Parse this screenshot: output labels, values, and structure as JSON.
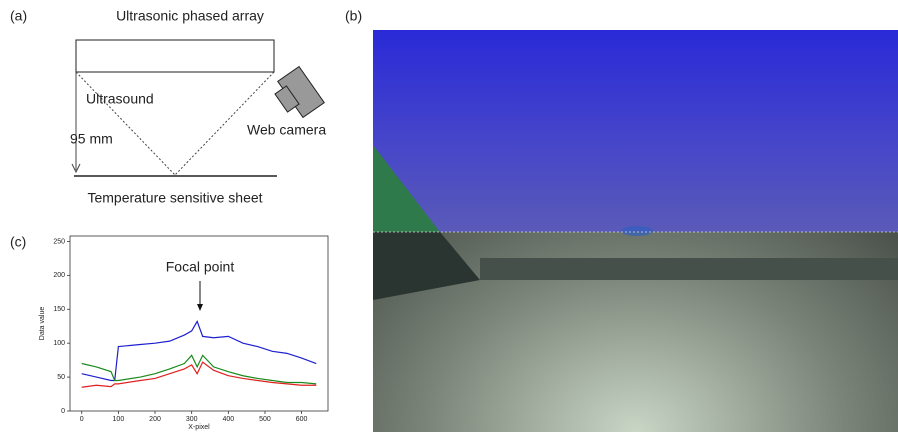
{
  "panels": {
    "a": {
      "label": "(a)",
      "title": "Ultrasonic phased array",
      "beam": "Ultrasound",
      "camera": "Web camera",
      "distance": "95 mm",
      "sheet": "Temperature sensitive sheet"
    },
    "b": {
      "label": "(b)"
    },
    "c": {
      "label": "(c)"
    }
  },
  "chart_data": {
    "type": "line",
    "xlabel": "X-pixel",
    "ylabel": "Data value",
    "annotation": "Focal point",
    "x": [
      0,
      40,
      80,
      90,
      100,
      160,
      200,
      240,
      280,
      300,
      315,
      330,
      360,
      400,
      440,
      480,
      520,
      560,
      600,
      640
    ],
    "series": [
      {
        "color": "#1f1fd0",
        "values": [
          55,
          50,
          45,
          45,
          95,
          98,
          100,
          103,
          112,
          118,
          132,
          110,
          108,
          110,
          100,
          95,
          88,
          85,
          78,
          70
        ]
      },
      {
        "color": "#1a8a1a",
        "values": [
          70,
          65,
          58,
          45,
          45,
          50,
          55,
          62,
          70,
          82,
          65,
          82,
          65,
          58,
          52,
          48,
          45,
          42,
          42,
          40
        ]
      },
      {
        "color": "#e02020",
        "values": [
          35,
          38,
          36,
          40,
          40,
          45,
          48,
          55,
          62,
          68,
          55,
          72,
          60,
          52,
          48,
          45,
          42,
          40,
          38,
          38
        ]
      }
    ],
    "xlim": [
      -32,
      672
    ],
    "ylim": [
      0,
      258
    ],
    "xticks": [
      0,
      100,
      200,
      300,
      400,
      500,
      600
    ],
    "yticks": [
      0,
      50,
      100,
      150,
      200,
      250
    ]
  }
}
